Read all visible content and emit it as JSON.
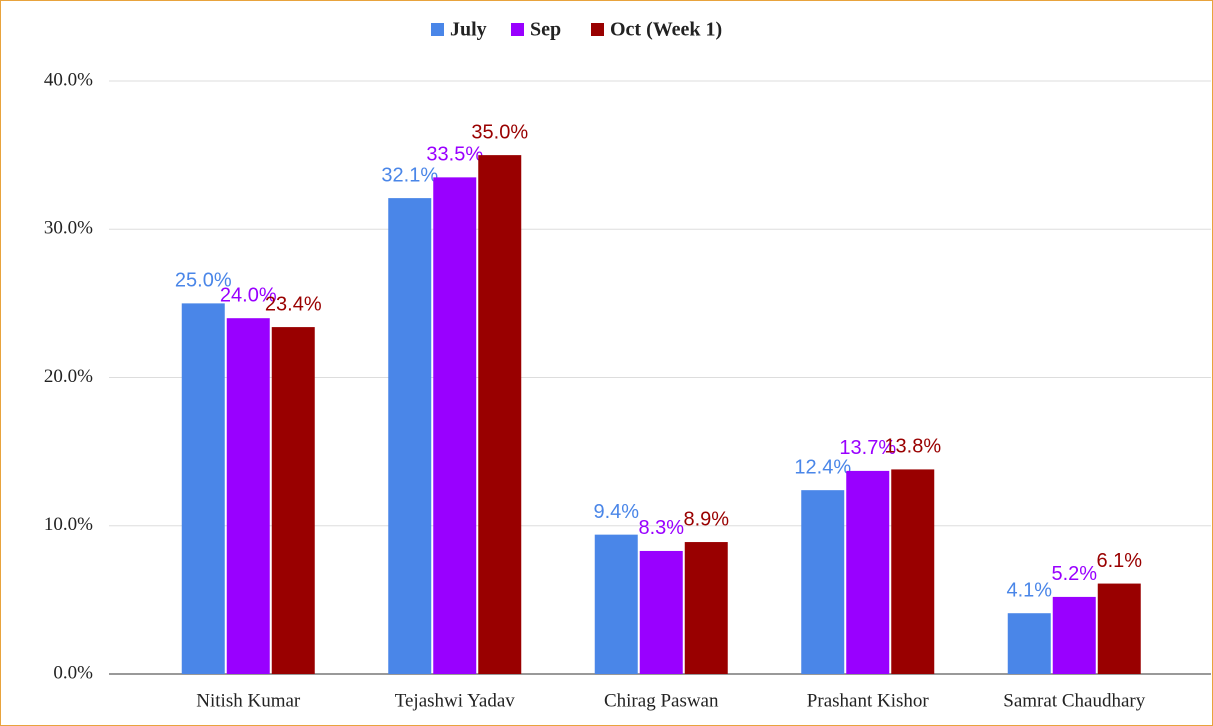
{
  "chart_data": {
    "type": "bar",
    "categories": [
      "Nitish Kumar",
      "Tejashwi Yadav",
      "Chirag Paswan",
      "Prashant Kishor",
      "Samrat Chaudhary"
    ],
    "series": [
      {
        "name": "July",
        "color": "#4a86e8",
        "values": [
          25.0,
          32.1,
          9.4,
          12.4,
          4.1
        ],
        "value_labels": [
          "25.0%",
          "32.1%",
          "9.4%",
          "12.4%",
          "4.1%"
        ]
      },
      {
        "name": "Sep",
        "color": "#9900ff",
        "values": [
          24.0,
          33.5,
          8.3,
          13.7,
          5.2
        ],
        "value_labels": [
          "24.0%",
          "33.5%",
          "8.3%",
          "13.7%",
          "5.2%"
        ]
      },
      {
        "name": "Oct (Week 1)",
        "color": "#990000",
        "values": [
          23.4,
          35.0,
          8.9,
          13.8,
          6.1
        ],
        "value_labels": [
          "23.4%",
          "35.0%",
          "8.9%",
          "13.8%",
          "6.1%"
        ]
      }
    ],
    "ylim": [
      0,
      40
    ],
    "yticks": [
      {
        "value": 0,
        "label": "0.0%"
      },
      {
        "value": 10,
        "label": "10.0%"
      },
      {
        "value": 20,
        "label": "20.0%"
      },
      {
        "value": 30,
        "label": "30.0%"
      },
      {
        "value": 40,
        "label": "40.0%"
      }
    ],
    "grid": true,
    "legend": "top"
  }
}
